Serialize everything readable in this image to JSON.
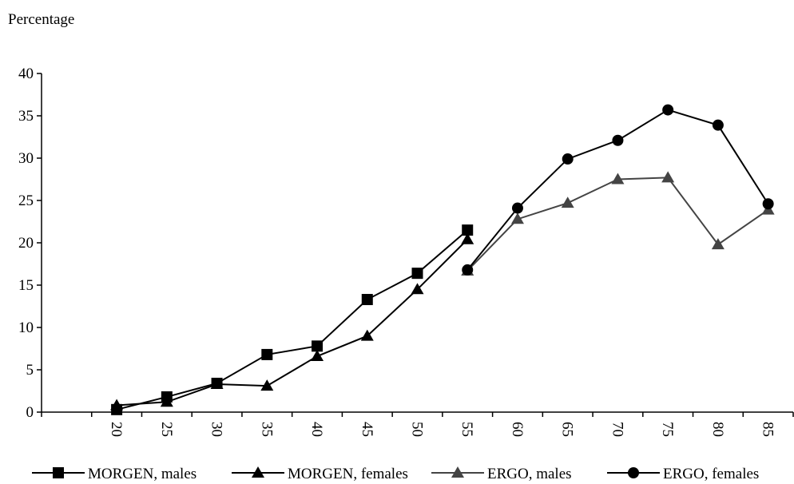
{
  "chart_data": {
    "type": "line",
    "ylabel": "Percentage",
    "xlabel": "",
    "title": "",
    "x_slots": 15,
    "x_ticks": [
      "20",
      "25",
      "30",
      "35",
      "40",
      "45",
      "50",
      "55",
      "60",
      "65",
      "70",
      "75",
      "80",
      "85"
    ],
    "ylim": [
      0,
      40
    ],
    "y_ticks": [
      "0",
      "5",
      "10",
      "15",
      "20",
      "25",
      "30",
      "35",
      "40"
    ],
    "grid": false,
    "legend_position": "bottom",
    "series": [
      {
        "name": "MORGEN, males",
        "marker": "square",
        "color": "#000000",
        "points": [
          {
            "x": "20",
            "y": 0.3
          },
          {
            "x": "25",
            "y": 1.8
          },
          {
            "x": "30",
            "y": 3.4
          },
          {
            "x": "35",
            "y": 6.8
          },
          {
            "x": "40",
            "y": 7.8
          },
          {
            "x": "45",
            "y": 13.3
          },
          {
            "x": "50",
            "y": 16.4
          },
          {
            "x": "55",
            "y": 21.5
          }
        ]
      },
      {
        "name": "MORGEN, females",
        "marker": "triangle",
        "color": "#000000",
        "points": [
          {
            "x": "20",
            "y": 0.8
          },
          {
            "x": "25",
            "y": 1.2
          },
          {
            "x": "30",
            "y": 3.3
          },
          {
            "x": "35",
            "y": 3.1
          },
          {
            "x": "40",
            "y": 6.6
          },
          {
            "x": "45",
            "y": 9.0
          },
          {
            "x": "50",
            "y": 14.5
          },
          {
            "x": "55",
            "y": 20.4
          }
        ]
      },
      {
        "name": "ERGO, males",
        "marker": "triangle",
        "color": "#444444",
        "points": [
          {
            "x": "55",
            "y": 16.7
          },
          {
            "x": "60",
            "y": 22.8
          },
          {
            "x": "65",
            "y": 24.7
          },
          {
            "x": "70",
            "y": 27.5
          },
          {
            "x": "75",
            "y": 27.7
          },
          {
            "x": "80",
            "y": 19.8
          },
          {
            "x": "85",
            "y": 23.9
          }
        ]
      },
      {
        "name": "ERGO, females",
        "marker": "circle",
        "color": "#000000",
        "points": [
          {
            "x": "55",
            "y": 16.8
          },
          {
            "x": "60",
            "y": 24.1
          },
          {
            "x": "65",
            "y": 29.9
          },
          {
            "x": "70",
            "y": 32.1
          },
          {
            "x": "75",
            "y": 35.7
          },
          {
            "x": "80",
            "y": 33.9
          },
          {
            "x": "85",
            "y": 24.6
          }
        ]
      }
    ]
  }
}
